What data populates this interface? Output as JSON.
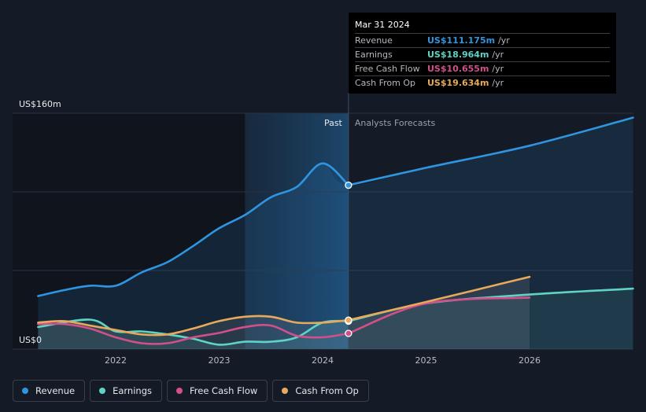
{
  "chart_data": {
    "type": "line",
    "title": "",
    "y_unit_labels": {
      "top": "US$160m",
      "bottom": "US$0"
    },
    "ylim": [
      0,
      160
    ],
    "xlim": [
      2021.25,
      2027.0
    ],
    "x_ticks": [
      {
        "value": 2022,
        "label": "2022"
      },
      {
        "value": 2023,
        "label": "2023"
      },
      {
        "value": 2024,
        "label": "2024"
      },
      {
        "value": 2025,
        "label": "2025"
      },
      {
        "value": 2026,
        "label": "2026"
      }
    ],
    "divider_x": 2024.25,
    "shade_start_x": 2023.25,
    "past_label": "Past",
    "forecast_label": "Analysts Forecasts",
    "series": [
      {
        "name": "Revenue",
        "color": "#2f95e0",
        "past": [
          [
            2021.25,
            36
          ],
          [
            2021.5,
            40
          ],
          [
            2021.75,
            43
          ],
          [
            2022.0,
            43
          ],
          [
            2022.25,
            52
          ],
          [
            2022.5,
            59
          ],
          [
            2022.75,
            70
          ],
          [
            2023.0,
            82
          ],
          [
            2023.25,
            91
          ],
          [
            2023.5,
            103
          ],
          [
            2023.75,
            110
          ],
          [
            2024.0,
            126
          ],
          [
            2024.25,
            111.175
          ]
        ],
        "forecast": [
          [
            2024.25,
            111.175
          ],
          [
            2025.0,
            123
          ],
          [
            2026.0,
            138
          ],
          [
            2027.0,
            157
          ]
        ]
      },
      {
        "name": "Earnings",
        "color": "#5fd3c4",
        "past": [
          [
            2021.25,
            15
          ],
          [
            2021.75,
            20
          ],
          [
            2022.0,
            12
          ],
          [
            2022.25,
            12
          ],
          [
            2022.5,
            10
          ],
          [
            2022.75,
            7
          ],
          [
            2023.0,
            3
          ],
          [
            2023.25,
            5
          ],
          [
            2023.5,
            5
          ],
          [
            2023.75,
            8
          ],
          [
            2024.0,
            18
          ],
          [
            2024.25,
            18.964
          ]
        ],
        "forecast": [
          [
            2024.25,
            18.964
          ],
          [
            2025.0,
            31
          ],
          [
            2026.0,
            37
          ],
          [
            2027.0,
            41
          ]
        ]
      },
      {
        "name": "Free Cash Flow",
        "color": "#d2508a",
        "past": [
          [
            2021.25,
            17
          ],
          [
            2021.5,
            17
          ],
          [
            2021.75,
            14
          ],
          [
            2022.0,
            8
          ],
          [
            2022.25,
            4
          ],
          [
            2022.5,
            4
          ],
          [
            2022.75,
            8
          ],
          [
            2023.0,
            11
          ],
          [
            2023.25,
            15
          ],
          [
            2023.5,
            16
          ],
          [
            2023.75,
            9
          ],
          [
            2024.0,
            8
          ],
          [
            2024.25,
            10.655
          ]
        ],
        "forecast": [
          [
            2024.25,
            10.655
          ],
          [
            2025.0,
            31
          ],
          [
            2026.0,
            35
          ]
        ]
      },
      {
        "name": "Cash From Op",
        "color": "#e8a95b",
        "past": [
          [
            2021.25,
            18
          ],
          [
            2021.5,
            19
          ],
          [
            2021.75,
            16
          ],
          [
            2022.0,
            13
          ],
          [
            2022.25,
            10
          ],
          [
            2022.5,
            10
          ],
          [
            2022.75,
            14
          ],
          [
            2023.0,
            19
          ],
          [
            2023.25,
            22
          ],
          [
            2023.5,
            22
          ],
          [
            2023.75,
            18
          ],
          [
            2024.0,
            18
          ],
          [
            2024.25,
            19.634
          ]
        ],
        "forecast": [
          [
            2024.25,
            19.634
          ],
          [
            2025.0,
            32
          ],
          [
            2026.0,
            49
          ]
        ]
      }
    ]
  },
  "tooltip": {
    "date": "Mar 31 2024",
    "rows": [
      {
        "label": "Revenue",
        "value": "US$111.175m",
        "unit": "/yr",
        "color": "#2f95e0"
      },
      {
        "label": "Earnings",
        "value": "US$18.964m",
        "unit": "/yr",
        "color": "#5fd3c4"
      },
      {
        "label": "Free Cash Flow",
        "value": "US$10.655m",
        "unit": "/yr",
        "color": "#d2508a"
      },
      {
        "label": "Cash From Op",
        "value": "US$19.634m",
        "unit": "/yr",
        "color": "#e8a95b"
      }
    ]
  },
  "legend": [
    {
      "label": "Revenue",
      "color": "#2f95e0"
    },
    {
      "label": "Earnings",
      "color": "#5fd3c4"
    },
    {
      "label": "Free Cash Flow",
      "color": "#d2508a"
    },
    {
      "label": "Cash From Op",
      "color": "#e8a95b"
    }
  ]
}
